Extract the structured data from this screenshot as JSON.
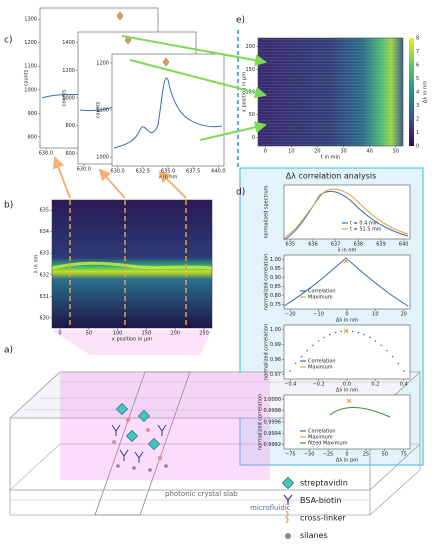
{
  "panels": {
    "a": {
      "label": "a)",
      "layers": [
        "photonic crystal slab",
        "microfluidic"
      ]
    },
    "b": {
      "label": "b)",
      "ylabel": "λ in nm",
      "yticks": [
        "630",
        "631",
        "632",
        "633",
        "634",
        "635"
      ],
      "xlabel": "x position in µm",
      "xticks": [
        "0",
        "50",
        "100",
        "150",
        "200",
        "250"
      ]
    },
    "c": {
      "label": "c)",
      "plots": [
        {
          "ylabel": "counts",
          "yticks": [
            "800",
            "900",
            "1000",
            "1100",
            "1200",
            "1300"
          ],
          "xticks": [
            "630.0"
          ]
        },
        {
          "ylabel": "counts",
          "yticks": [
            "600",
            "800",
            "1000",
            "1200",
            "1400"
          ],
          "xticks": [
            "630.0"
          ]
        },
        {
          "ylabel": "counts",
          "yticks": [
            "1000",
            "1100",
            "1200"
          ],
          "xticks": [
            "630.0",
            "632.5",
            "635.0",
            "637.5",
            "640.0"
          ],
          "xlabel": "λ in nm"
        }
      ]
    },
    "d": {
      "label": "d)",
      "title": "Δλ correlation analysis",
      "plots": [
        {
          "ylabel": "normalized spectrum",
          "yticks": [],
          "xticks": [
            "635",
            "636",
            "637",
            "638",
            "639",
            "640"
          ],
          "xlabel": "λ in nm",
          "legend": [
            "t = 0.4 min",
            "t = 51.5 min"
          ]
        },
        {
          "ylabel": "normalized correlation",
          "yticks": [
            "0.75",
            "0.80",
            "0.85",
            "0.90",
            "0.95",
            "1.00"
          ],
          "xticks": [
            "−20",
            "−10",
            "0",
            "10",
            "20"
          ],
          "xlabel": "Δλ in nm",
          "legend": [
            "Correlation",
            "Maximum"
          ]
        },
        {
          "ylabel": "normalized correlation",
          "yticks": [
            "0.97",
            "0.98",
            "0.99",
            "1.00"
          ],
          "xticks": [
            "−0.4",
            "−0.2",
            "0.0",
            "0.2",
            "0.4"
          ],
          "xlabel": "Δλ in nm",
          "legend": [
            "Correlation",
            "Maximum"
          ]
        },
        {
          "ylabel": "normalized correlation",
          "yticks": [
            "0.9992",
            "0.9994",
            "0.9996",
            "0.9998",
            "1.0000"
          ],
          "xticks": [
            "−75",
            "−50",
            "−25",
            "0",
            "25",
            "50",
            "75"
          ],
          "xlabel": "Δλ in pm",
          "legend": [
            "Correlation",
            "Maximum",
            "fitted Maximum"
          ]
        }
      ]
    },
    "e": {
      "label": "e)",
      "ylabel": "x position in µm",
      "yticks": [
        "0",
        "50",
        "100",
        "150",
        "200"
      ],
      "xlabel": "t in min",
      "xticks": [
        "0",
        "10",
        "20",
        "30",
        "40",
        "50"
      ],
      "cbar_label": "Δλ in nm",
      "cbar_ticks": [
        "0",
        "1",
        "2",
        "3",
        "4",
        "5",
        "6",
        "7",
        "8"
      ]
    }
  },
  "legend": [
    "streptavidin",
    "BSA-biotin",
    "cross-linker",
    "silanes"
  ]
}
